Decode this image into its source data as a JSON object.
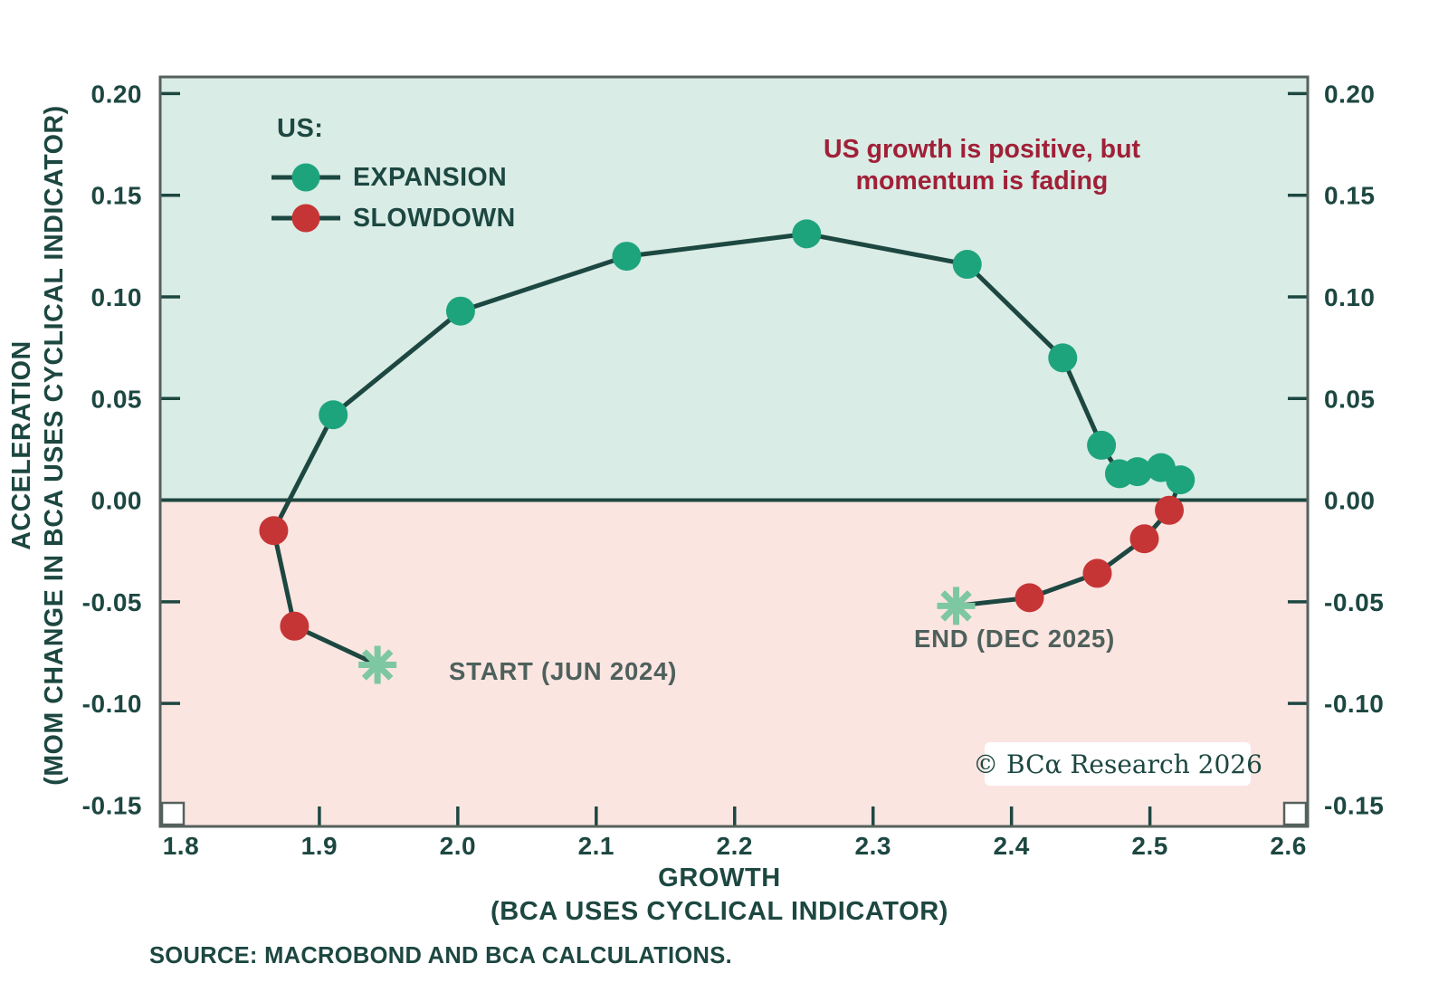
{
  "colors": {
    "background": "#ffffff",
    "plot_bg_positive": "#d9ece5",
    "plot_bg_negative": "#fbe5e1",
    "frame": "#55615d",
    "line": "#1d4741",
    "expansion": "#1ea47d",
    "slowdown": "#c63535",
    "star": "#7ec7a3",
    "tick_text": "#1d4741",
    "annotation_text": "#a02038",
    "phase_label_text": "#4e605c",
    "watermark_text": "#1d4741",
    "watermark_bg": "#ffffff"
  },
  "legend": {
    "heading": "US:",
    "items": [
      {
        "label": "EXPANSION",
        "phase": "expansion"
      },
      {
        "label": "SLOWDOWN",
        "phase": "slowdown"
      }
    ]
  },
  "annotation": {
    "line1": "US growth is positive, but",
    "line2": "momentum is fading"
  },
  "axis": {
    "x_title_line1": "GROWTH",
    "x_title_line2": "(BCA USES CYCLICAL INDICATOR)",
    "y_title_line1": "ACCELERATION",
    "y_title_line2": "(MOM CHANGE IN BCA USES CYCLICAL INDICATOR)"
  },
  "labels": {
    "start": "START (JUN 2024)",
    "end": "END (DEC 2025)"
  },
  "watermark": "© BCα Research 2026",
  "source": "SOURCE: MACROBOND AND BCA CALCULATIONS.",
  "chart_data": {
    "type": "scatter",
    "title": "US growth is positive, but momentum is fading",
    "xlabel": "GROWTH (BCA USES CYCLICAL INDICATOR)",
    "ylabel": "ACCELERATION (MOM CHANGE IN BCA USES CYCLICAL INDICATOR)",
    "xlim": [
      1.785,
      2.614
    ],
    "ylim": [
      -0.1605,
      0.2082
    ],
    "zero_line": 0,
    "grid": false,
    "legend_position": "top-left",
    "x_ticks": [
      {
        "v": 1.8,
        "label": "1.8"
      },
      {
        "v": 1.9,
        "label": "1.9"
      },
      {
        "v": 2.0,
        "label": "2.0"
      },
      {
        "v": 2.1,
        "label": "2.1"
      },
      {
        "v": 2.2,
        "label": "2.2"
      },
      {
        "v": 2.3,
        "label": "2.3"
      },
      {
        "v": 2.4,
        "label": "2.4"
      },
      {
        "v": 2.5,
        "label": "2.5"
      },
      {
        "v": 2.6,
        "label": "2.6"
      }
    ],
    "y_ticks": [
      {
        "v": 0.2,
        "label": "0.20"
      },
      {
        "v": 0.15,
        "label": "0.15"
      },
      {
        "v": 0.1,
        "label": "0.10"
      },
      {
        "v": 0.05,
        "label": "0.05"
      },
      {
        "v": 0.0,
        "label": "0.00"
      },
      {
        "v": -0.05,
        "label": "-0.05"
      },
      {
        "v": -0.1,
        "label": "-0.10"
      },
      {
        "v": -0.15,
        "label": "-0.15"
      }
    ],
    "series": [
      {
        "name": "US",
        "points": [
          {
            "x": 1.942,
            "y": -0.081,
            "phase": "start"
          },
          {
            "x": 1.882,
            "y": -0.062,
            "phase": "slowdown"
          },
          {
            "x": 1.867,
            "y": -0.015,
            "phase": "slowdown"
          },
          {
            "x": 1.91,
            "y": 0.042,
            "phase": "expansion"
          },
          {
            "x": 2.002,
            "y": 0.093,
            "phase": "expansion"
          },
          {
            "x": 2.122,
            "y": 0.12,
            "phase": "expansion"
          },
          {
            "x": 2.252,
            "y": 0.131,
            "phase": "expansion"
          },
          {
            "x": 2.368,
            "y": 0.116,
            "phase": "expansion"
          },
          {
            "x": 2.437,
            "y": 0.07,
            "phase": "expansion"
          },
          {
            "x": 2.465,
            "y": 0.027,
            "phase": "expansion"
          },
          {
            "x": 2.478,
            "y": 0.013,
            "phase": "expansion"
          },
          {
            "x": 2.491,
            "y": 0.014,
            "phase": "expansion"
          },
          {
            "x": 2.508,
            "y": 0.016,
            "phase": "expansion"
          },
          {
            "x": 2.522,
            "y": 0.01,
            "phase": "expansion"
          },
          {
            "x": 2.514,
            "y": -0.005,
            "phase": "slowdown"
          },
          {
            "x": 2.496,
            "y": -0.019,
            "phase": "slowdown"
          },
          {
            "x": 2.462,
            "y": -0.036,
            "phase": "slowdown"
          },
          {
            "x": 2.413,
            "y": -0.048,
            "phase": "slowdown"
          },
          {
            "x": 2.36,
            "y": -0.052,
            "phase": "end"
          }
        ]
      }
    ]
  }
}
